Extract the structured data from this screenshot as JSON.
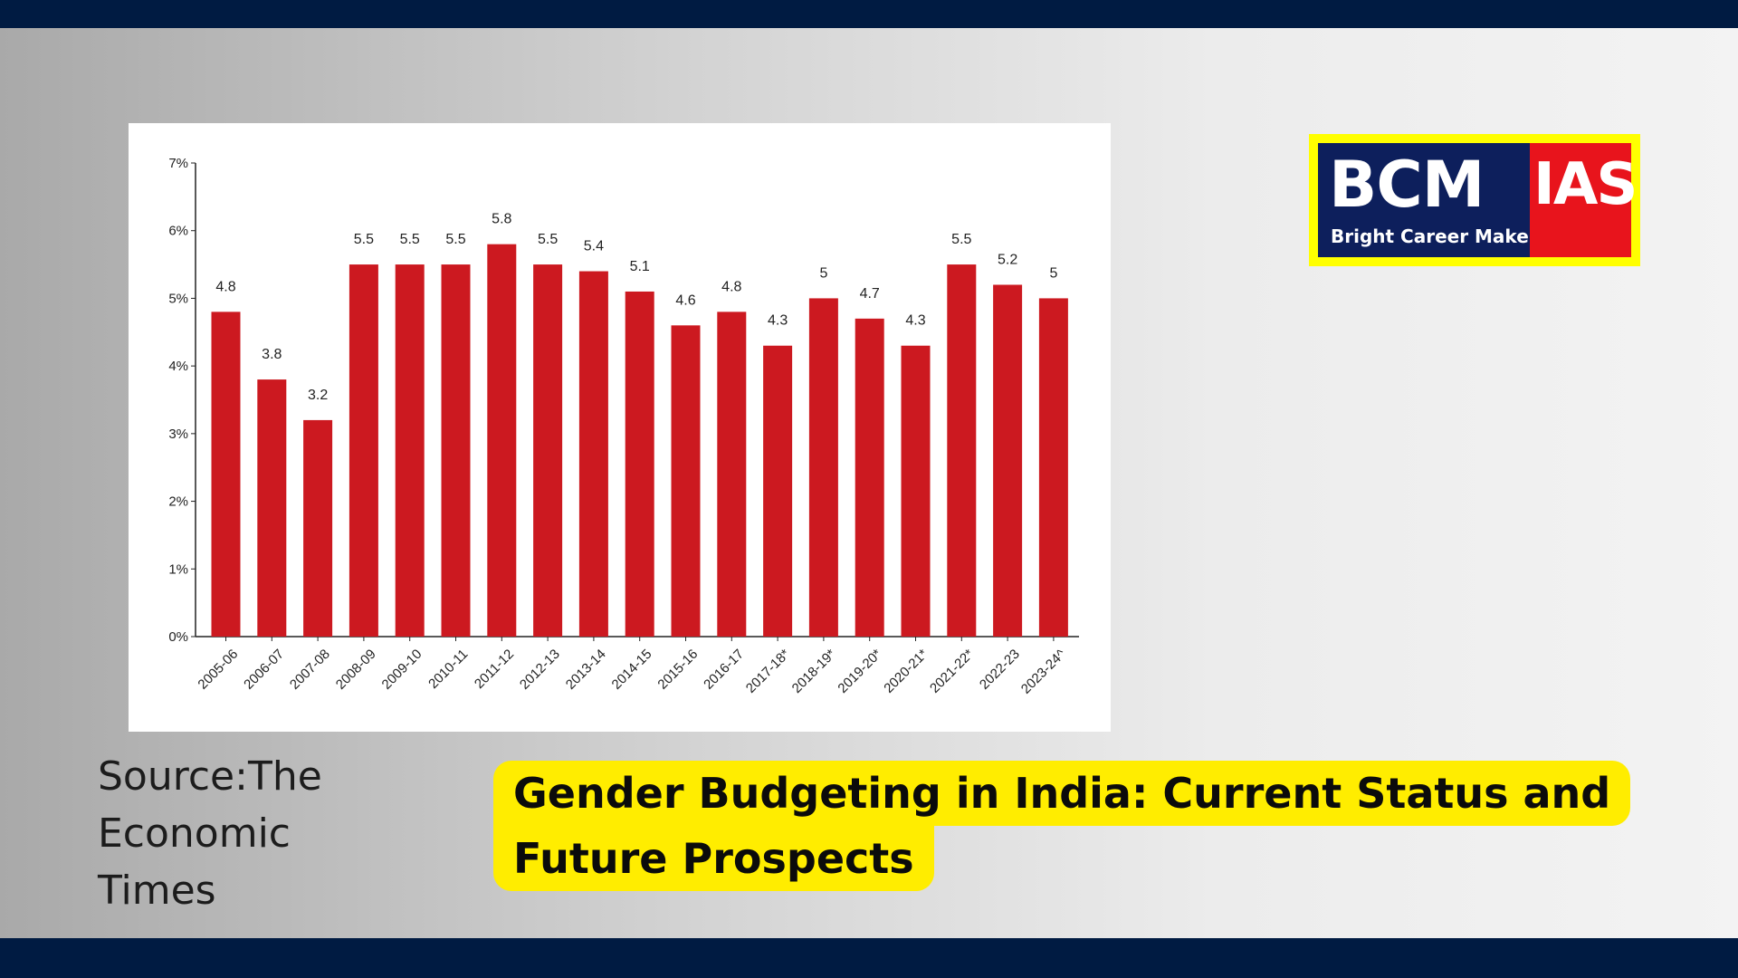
{
  "colors": {
    "bar": "#cc1920",
    "frame": "#001b42",
    "highlight": "#ffed00",
    "logo_blue": "#0d1f5c",
    "logo_red": "#e8141c",
    "logo_border": "#ffff00"
  },
  "logo": {
    "left_text": "BCM",
    "right_text": "IAS",
    "tagline": "Bright Career Maker"
  },
  "source": {
    "text": "Source:The Economic Times"
  },
  "headline": {
    "line1": "Gender Budgeting in India: Current Status and",
    "line2": "Future Prospects"
  },
  "chart_data": {
    "type": "bar",
    "title": "",
    "xlabel": "",
    "ylabel": "",
    "ylim": [
      0,
      7
    ],
    "yticks": [
      "0%",
      "1%",
      "2%",
      "3%",
      "4%",
      "5%",
      "6%",
      "7%"
    ],
    "grid": false,
    "categories": [
      "2005-06",
      "2006-07",
      "2007-08",
      "2008-09",
      "2009-10",
      "2010-11",
      "2011-12",
      "2012-13",
      "2013-14",
      "2014-15",
      "2015-16",
      "2016-17",
      "2017-18*",
      "2018-19*",
      "2019-20*",
      "2020-21*",
      "2021-22*",
      "2022-23",
      "2023-24^"
    ],
    "values": [
      4.8,
      3.8,
      3.2,
      5.5,
      5.5,
      5.5,
      5.8,
      5.5,
      5.4,
      5.1,
      4.6,
      4.8,
      4.3,
      5,
      4.7,
      4.3,
      5.5,
      5.2,
      5
    ],
    "value_labels": [
      "4.8",
      "3.8",
      "3.2",
      "5.5",
      "5.5",
      "5.5",
      "5.8",
      "5.5",
      "5.4",
      "5.1",
      "4.6",
      "4.8",
      "4.3",
      "5",
      "4.7",
      "4.3",
      "5.5",
      "5.2",
      "5"
    ]
  }
}
